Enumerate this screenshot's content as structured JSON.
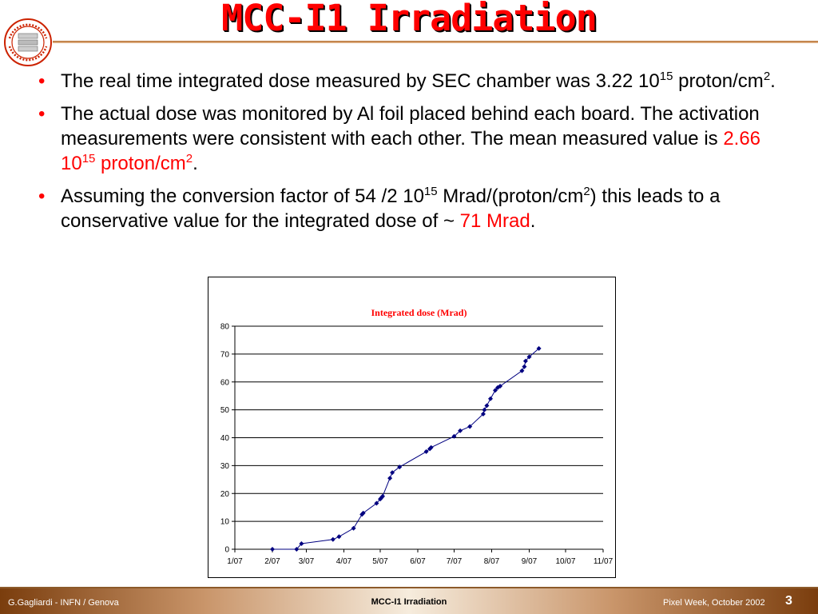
{
  "slide": {
    "title": "MCC-I1 Irradiation",
    "logo_text": "ATLAS Pixel Detector Collaboration",
    "bullets": [
      {
        "t1": "The real time integrated dose measured by SEC chamber was 3.22 10",
        "sup1": "15",
        "t2": " proton/cm",
        "sup2": "2",
        "t3": "."
      },
      {
        "t1": "The actual dose was monitored by Al foil placed behind each board. The activation measurements were consistent with each other. The mean measured value is ",
        "h1": "2.66 10",
        "hsup": "15",
        "h2": " proton/cm",
        "hsup2": "2",
        "t2": "."
      },
      {
        "t1": "Assuming the conversion factor of 54 /2 10",
        "sup1": "15",
        "t2": " Mrad/(proton/cm",
        "sup2": "2",
        "t3": ") this leads to a conservative value for the integrated dose of ~ ",
        "h1": "71 Mrad",
        "t4": "."
      }
    ]
  },
  "footer": {
    "left": "G.Gagliardi - INFN / Genova",
    "center": "MCC-I1 Irradiation",
    "right": "Pixel Week, October 2002",
    "page": "3"
  },
  "chart_data": {
    "type": "line",
    "title": "Integrated dose (Mrad)",
    "xlabel": "",
    "ylabel": "",
    "ylim": [
      0,
      80
    ],
    "yticks": [
      0,
      10,
      20,
      30,
      40,
      50,
      60,
      70,
      80
    ],
    "x_ticks": [
      "1/07",
      "2/07",
      "3/07",
      "4/07",
      "5/07",
      "6/07",
      "7/07",
      "8/07",
      "9/07",
      "10/07",
      "11/07"
    ],
    "grid": "horizontal",
    "legend": "none",
    "colors": {
      "series": "#000080",
      "title": "#ff0000"
    },
    "series": [
      {
        "points": [
          [
            "2/07",
            0
          ],
          [
            "2/27",
            0
          ],
          [
            "3/03",
            2
          ],
          [
            "3/29",
            3.5
          ],
          [
            "4/03",
            4.5
          ],
          [
            "4/15",
            7.5
          ],
          [
            "4/22",
            12.5
          ],
          [
            "4/23",
            13
          ],
          [
            "5/04",
            16.5
          ],
          [
            "5/07",
            18
          ],
          [
            "5/08",
            18.5
          ],
          [
            "5/09",
            19
          ],
          [
            "5/15",
            25.5
          ],
          [
            "5/17",
            27.5
          ],
          [
            "5/23",
            29.5
          ],
          [
            "6/14",
            35
          ],
          [
            "6/17",
            36
          ],
          [
            "6/18",
            36.5
          ],
          [
            "7/07",
            40.5
          ],
          [
            "7/12",
            42.5
          ],
          [
            "7/20",
            44
          ],
          [
            "7/31",
            48.5
          ],
          [
            "8/01",
            50
          ],
          [
            "8/03",
            51.5
          ],
          [
            "8/06",
            54
          ],
          [
            "8/10",
            57
          ],
          [
            "8/12",
            58
          ],
          [
            "8/14",
            58.5
          ],
          [
            "9/01",
            64
          ],
          [
            "9/03",
            65.5
          ],
          [
            "9/04",
            67.5
          ],
          [
            "9/07",
            69
          ],
          [
            "9/15",
            72
          ]
        ]
      }
    ]
  }
}
